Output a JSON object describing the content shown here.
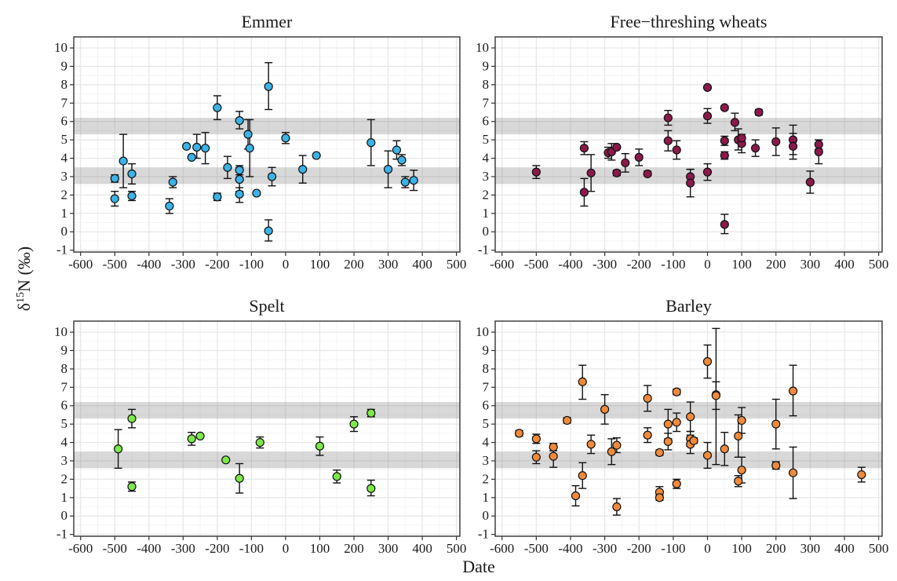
{
  "figure": {
    "ylabel_main": "δ",
    "ylabel_sup": "15",
    "ylabel_rest": "N (‰)",
    "xlabel": "Date"
  },
  "chart_data": [
    {
      "type": "scatter",
      "title": "Emmer",
      "xlabel": "Date",
      "ylabel": "δ15N (‰)",
      "xlim": [
        -620,
        510
      ],
      "ylim": [
        -1.1,
        10.6
      ],
      "xticks": [
        -600,
        -500,
        -400,
        -300,
        -200,
        -100,
        0,
        100,
        200,
        300,
        400,
        500
      ],
      "yticks": [
        -1,
        0,
        1,
        2,
        3,
        4,
        5,
        6,
        7,
        8,
        9,
        10
      ],
      "grid": true,
      "bands": [
        [
          2.6,
          3.5
        ],
        [
          5.3,
          6.2
        ]
      ],
      "color": "#3bb3e6",
      "points": [
        {
          "x": -500,
          "y": 2.9,
          "lo": 2.7,
          "hi": 3.1
        },
        {
          "x": -500,
          "y": 1.8,
          "lo": 1.4,
          "hi": 2.2
        },
        {
          "x": -475,
          "y": 3.85,
          "lo": 2.4,
          "hi": 5.3
        },
        {
          "x": -450,
          "y": 3.15,
          "lo": 2.6,
          "hi": 3.7
        },
        {
          "x": -450,
          "y": 1.95,
          "lo": 1.7,
          "hi": 2.2
        },
        {
          "x": -340,
          "y": 1.4,
          "lo": 1.0,
          "hi": 1.8
        },
        {
          "x": -330,
          "y": 2.7,
          "lo": 2.4,
          "hi": 3.0
        },
        {
          "x": -290,
          "y": 4.65,
          "lo": 4.65,
          "hi": 4.65
        },
        {
          "x": -275,
          "y": 4.05,
          "lo": 4.05,
          "hi": 4.05
        },
        {
          "x": -260,
          "y": 4.6,
          "lo": 4.0,
          "hi": 5.3
        },
        {
          "x": -235,
          "y": 4.55,
          "lo": 3.7,
          "hi": 5.4
        },
        {
          "x": -200,
          "y": 6.75,
          "lo": 6.1,
          "hi": 7.4
        },
        {
          "x": -200,
          "y": 1.9,
          "lo": 1.7,
          "hi": 2.1
        },
        {
          "x": -170,
          "y": 3.5,
          "lo": 2.9,
          "hi": 4.1
        },
        {
          "x": -135,
          "y": 6.05,
          "lo": 5.6,
          "hi": 6.55
        },
        {
          "x": -135,
          "y": 3.35,
          "lo": 3.1,
          "hi": 3.6
        },
        {
          "x": -135,
          "y": 2.85,
          "lo": 2.2,
          "hi": 3.5
        },
        {
          "x": -135,
          "y": 2.05,
          "lo": 1.6,
          "hi": 2.4
        },
        {
          "x": -110,
          "y": 5.3,
          "lo": 4.5,
          "hi": 6.1
        },
        {
          "x": -105,
          "y": 4.55,
          "lo": 3.0,
          "hi": 6.1
        },
        {
          "x": -85,
          "y": 2.1,
          "lo": 2.1,
          "hi": 2.1
        },
        {
          "x": -50,
          "y": 7.9,
          "lo": 6.65,
          "hi": 9.2
        },
        {
          "x": -50,
          "y": 0.05,
          "lo": -0.5,
          "hi": 0.65
        },
        {
          "x": -40,
          "y": 3.0,
          "lo": 2.5,
          "hi": 3.5
        },
        {
          "x": 0,
          "y": 5.1,
          "lo": 4.8,
          "hi": 5.4
        },
        {
          "x": 50,
          "y": 3.4,
          "lo": 2.65,
          "hi": 4.15
        },
        {
          "x": 90,
          "y": 4.15,
          "lo": 4.15,
          "hi": 4.15
        },
        {
          "x": 250,
          "y": 4.85,
          "lo": 3.6,
          "hi": 6.1
        },
        {
          "x": 300,
          "y": 3.4,
          "lo": 2.4,
          "hi": 4.4
        },
        {
          "x": 325,
          "y": 4.45,
          "lo": 3.95,
          "hi": 4.95
        },
        {
          "x": 340,
          "y": 3.9,
          "lo": 3.6,
          "hi": 4.2
        },
        {
          "x": 350,
          "y": 2.7,
          "lo": 2.4,
          "hi": 3.0
        },
        {
          "x": 375,
          "y": 2.8,
          "lo": 2.25,
          "hi": 3.35
        }
      ]
    },
    {
      "type": "scatter",
      "title": "Free−threshing wheats",
      "xlabel": "Date",
      "ylabel": "δ15N (‰)",
      "xlim": [
        -620,
        510
      ],
      "ylim": [
        -1.1,
        10.6
      ],
      "xticks": [
        -600,
        -500,
        -400,
        -300,
        -200,
        -100,
        0,
        100,
        200,
        300,
        400,
        500
      ],
      "yticks": [
        -1,
        0,
        1,
        2,
        3,
        4,
        5,
        6,
        7,
        8,
        9,
        10
      ],
      "grid": true,
      "bands": [
        [
          2.6,
          3.5
        ],
        [
          5.3,
          6.2
        ]
      ],
      "color": "#8b1a4a",
      "points": [
        {
          "x": -500,
          "y": 3.25,
          "lo": 2.9,
          "hi": 3.6
        },
        {
          "x": -360,
          "y": 4.55,
          "lo": 4.2,
          "hi": 4.9
        },
        {
          "x": -360,
          "y": 2.15,
          "lo": 1.4,
          "hi": 2.9
        },
        {
          "x": -340,
          "y": 3.2,
          "lo": 2.2,
          "hi": 4.2
        },
        {
          "x": -290,
          "y": 4.3,
          "lo": 4.0,
          "hi": 4.6
        },
        {
          "x": -280,
          "y": 4.35,
          "lo": 3.9,
          "hi": 4.8
        },
        {
          "x": -265,
          "y": 4.6,
          "lo": 4.6,
          "hi": 4.6
        },
        {
          "x": -265,
          "y": 3.2,
          "lo": 3.05,
          "hi": 3.35
        },
        {
          "x": -240,
          "y": 3.75,
          "lo": 3.25,
          "hi": 4.25
        },
        {
          "x": -200,
          "y": 4.05,
          "lo": 3.6,
          "hi": 4.5
        },
        {
          "x": -175,
          "y": 3.15,
          "lo": 3.05,
          "hi": 3.3
        },
        {
          "x": -115,
          "y": 6.2,
          "lo": 5.8,
          "hi": 6.6
        },
        {
          "x": -115,
          "y": 4.95,
          "lo": 4.4,
          "hi": 5.5
        },
        {
          "x": -90,
          "y": 4.45,
          "lo": 3.95,
          "hi": 4.95
        },
        {
          "x": -50,
          "y": 3.0,
          "lo": 2.6,
          "hi": 3.4
        },
        {
          "x": -50,
          "y": 2.65,
          "lo": 1.9,
          "hi": 3.4
        },
        {
          "x": 0,
          "y": 7.85,
          "lo": 7.85,
          "hi": 7.85
        },
        {
          "x": 0,
          "y": 6.3,
          "lo": 5.9,
          "hi": 6.7
        },
        {
          "x": 0,
          "y": 3.25,
          "lo": 2.8,
          "hi": 3.7
        },
        {
          "x": 50,
          "y": 6.75,
          "lo": 6.65,
          "hi": 6.85
        },
        {
          "x": 50,
          "y": 4.95,
          "lo": 4.7,
          "hi": 5.2
        },
        {
          "x": 50,
          "y": 4.15,
          "lo": 3.95,
          "hi": 4.35
        },
        {
          "x": 50,
          "y": 0.4,
          "lo": -0.1,
          "hi": 0.95
        },
        {
          "x": 80,
          "y": 5.95,
          "lo": 5.5,
          "hi": 6.45
        },
        {
          "x": 90,
          "y": 5.0,
          "lo": 4.45,
          "hi": 5.6
        },
        {
          "x": 100,
          "y": 4.8,
          "lo": 4.3,
          "hi": 5.3
        },
        {
          "x": 100,
          "y": 5.1,
          "lo": 5.1,
          "hi": 5.1
        },
        {
          "x": 140,
          "y": 4.55,
          "lo": 4.1,
          "hi": 5.0
        },
        {
          "x": 150,
          "y": 6.5,
          "lo": 6.35,
          "hi": 6.65
        },
        {
          "x": 200,
          "y": 4.9,
          "lo": 4.15,
          "hi": 5.65
        },
        {
          "x": 250,
          "y": 5.0,
          "lo": 4.2,
          "hi": 5.8
        },
        {
          "x": 250,
          "y": 4.65,
          "lo": 3.95,
          "hi": 5.35
        },
        {
          "x": 300,
          "y": 2.7,
          "lo": 2.1,
          "hi": 3.3
        },
        {
          "x": 325,
          "y": 4.75,
          "lo": 4.5,
          "hi": 5.0
        },
        {
          "x": 325,
          "y": 4.35,
          "lo": 3.7,
          "hi": 5.0
        }
      ]
    },
    {
      "type": "scatter",
      "title": "Spelt",
      "xlabel": "Date",
      "ylabel": "δ15N (‰)",
      "xlim": [
        -620,
        510
      ],
      "ylim": [
        -1.1,
        10.6
      ],
      "xticks": [
        -600,
        -500,
        -400,
        -300,
        -200,
        -100,
        0,
        100,
        200,
        300,
        400,
        500
      ],
      "yticks": [
        -1,
        0,
        1,
        2,
        3,
        4,
        5,
        6,
        7,
        8,
        9,
        10
      ],
      "grid": true,
      "bands": [
        [
          2.6,
          3.5
        ],
        [
          5.3,
          6.2
        ]
      ],
      "color": "#7de84a",
      "points": [
        {
          "x": -490,
          "y": 3.65,
          "lo": 2.6,
          "hi": 4.7
        },
        {
          "x": -450,
          "y": 5.3,
          "lo": 4.8,
          "hi": 5.8
        },
        {
          "x": -450,
          "y": 1.6,
          "lo": 1.35,
          "hi": 1.85
        },
        {
          "x": -275,
          "y": 4.2,
          "lo": 3.85,
          "hi": 4.55
        },
        {
          "x": -250,
          "y": 4.35,
          "lo": 4.35,
          "hi": 4.35
        },
        {
          "x": -175,
          "y": 3.05,
          "lo": 3.05,
          "hi": 3.05
        },
        {
          "x": -135,
          "y": 2.05,
          "lo": 1.25,
          "hi": 2.85
        },
        {
          "x": -75,
          "y": 4.0,
          "lo": 3.7,
          "hi": 4.3
        },
        {
          "x": 100,
          "y": 3.8,
          "lo": 3.3,
          "hi": 4.3
        },
        {
          "x": 150,
          "y": 2.15,
          "lo": 1.8,
          "hi": 2.5
        },
        {
          "x": 200,
          "y": 5.0,
          "lo": 4.6,
          "hi": 5.4
        },
        {
          "x": 250,
          "y": 5.6,
          "lo": 5.4,
          "hi": 5.8
        },
        {
          "x": 250,
          "y": 1.5,
          "lo": 1.1,
          "hi": 1.95
        }
      ]
    },
    {
      "type": "scatter",
      "title": "Barley",
      "xlabel": "Date",
      "ylabel": "δ15N (‰)",
      "xlim": [
        -620,
        510
      ],
      "ylim": [
        -1.1,
        10.6
      ],
      "xticks": [
        -600,
        -500,
        -400,
        -300,
        -200,
        -100,
        0,
        100,
        200,
        300,
        400,
        500
      ],
      "yticks": [
        -1,
        0,
        1,
        2,
        3,
        4,
        5,
        6,
        7,
        8,
        9,
        10
      ],
      "grid": true,
      "bands": [
        [
          2.6,
          3.5
        ],
        [
          5.3,
          6.2
        ]
      ],
      "color": "#f08a3c",
      "points": [
        {
          "x": -550,
          "y": 4.5,
          "lo": 4.35,
          "hi": 4.65
        },
        {
          "x": -500,
          "y": 4.2,
          "lo": 3.95,
          "hi": 4.45
        },
        {
          "x": -500,
          "y": 3.2,
          "lo": 2.85,
          "hi": 3.55
        },
        {
          "x": -450,
          "y": 3.75,
          "lo": 3.55,
          "hi": 3.95
        },
        {
          "x": -450,
          "y": 3.25,
          "lo": 2.65,
          "hi": 3.85
        },
        {
          "x": -410,
          "y": 5.2,
          "lo": 5.05,
          "hi": 5.35
        },
        {
          "x": -385,
          "y": 1.1,
          "lo": 0.55,
          "hi": 1.65
        },
        {
          "x": -365,
          "y": 7.3,
          "lo": 6.35,
          "hi": 8.2
        },
        {
          "x": -365,
          "y": 2.2,
          "lo": 1.5,
          "hi": 2.9
        },
        {
          "x": -340,
          "y": 3.9,
          "lo": 3.4,
          "hi": 4.4
        },
        {
          "x": -300,
          "y": 5.8,
          "lo": 5.0,
          "hi": 6.6
        },
        {
          "x": -280,
          "y": 3.5,
          "lo": 2.8,
          "hi": 4.2
        },
        {
          "x": -265,
          "y": 3.85,
          "lo": 3.45,
          "hi": 4.25
        },
        {
          "x": -265,
          "y": 0.5,
          "lo": 0.05,
          "hi": 0.95
        },
        {
          "x": -175,
          "y": 6.4,
          "lo": 5.7,
          "hi": 7.1
        },
        {
          "x": -175,
          "y": 4.4,
          "lo": 4.0,
          "hi": 4.8
        },
        {
          "x": -140,
          "y": 3.45,
          "lo": 3.3,
          "hi": 3.6
        },
        {
          "x": -140,
          "y": 1.3,
          "lo": 1.0,
          "hi": 1.6
        },
        {
          "x": -140,
          "y": 1.0,
          "lo": 0.85,
          "hi": 1.15
        },
        {
          "x": -115,
          "y": 5.0,
          "lo": 4.2,
          "hi": 5.8
        },
        {
          "x": -115,
          "y": 4.05,
          "lo": 3.6,
          "hi": 4.5
        },
        {
          "x": -90,
          "y": 6.75,
          "lo": 6.6,
          "hi": 6.9
        },
        {
          "x": -90,
          "y": 5.1,
          "lo": 4.6,
          "hi": 5.6
        },
        {
          "x": -90,
          "y": 1.75,
          "lo": 1.5,
          "hi": 2.0
        },
        {
          "x": -50,
          "y": 5.4,
          "lo": 4.6,
          "hi": 6.2
        },
        {
          "x": -50,
          "y": 4.2,
          "lo": 3.8,
          "hi": 4.6
        },
        {
          "x": -50,
          "y": 3.9,
          "lo": 3.4,
          "hi": 4.4
        },
        {
          "x": -40,
          "y": 4.1,
          "lo": 3.95,
          "hi": 4.25
        },
        {
          "x": 0,
          "y": 8.4,
          "lo": 7.5,
          "hi": 9.3
        },
        {
          "x": 0,
          "y": 3.3,
          "lo": 2.6,
          "hi": 4.0
        },
        {
          "x": 25,
          "y": 6.6,
          "lo": 2.8,
          "hi": 10.2
        },
        {
          "x": 25,
          "y": 6.55,
          "lo": 5.8,
          "hi": 7.3
        },
        {
          "x": 50,
          "y": 3.65,
          "lo": 2.75,
          "hi": 4.55
        },
        {
          "x": 90,
          "y": 4.35,
          "lo": 3.2,
          "hi": 5.5
        },
        {
          "x": 90,
          "y": 1.9,
          "lo": 1.6,
          "hi": 2.2
        },
        {
          "x": 100,
          "y": 5.2,
          "lo": 4.5,
          "hi": 5.9
        },
        {
          "x": 100,
          "y": 2.5,
          "lo": 1.8,
          "hi": 3.2
        },
        {
          "x": 200,
          "y": 5.0,
          "lo": 3.65,
          "hi": 6.35
        },
        {
          "x": 200,
          "y": 2.75,
          "lo": 2.55,
          "hi": 2.95
        },
        {
          "x": 250,
          "y": 6.8,
          "lo": 5.45,
          "hi": 8.2
        },
        {
          "x": 250,
          "y": 2.35,
          "lo": 0.95,
          "hi": 3.75
        },
        {
          "x": 450,
          "y": 2.25,
          "lo": 1.85,
          "hi": 2.65
        }
      ]
    }
  ]
}
